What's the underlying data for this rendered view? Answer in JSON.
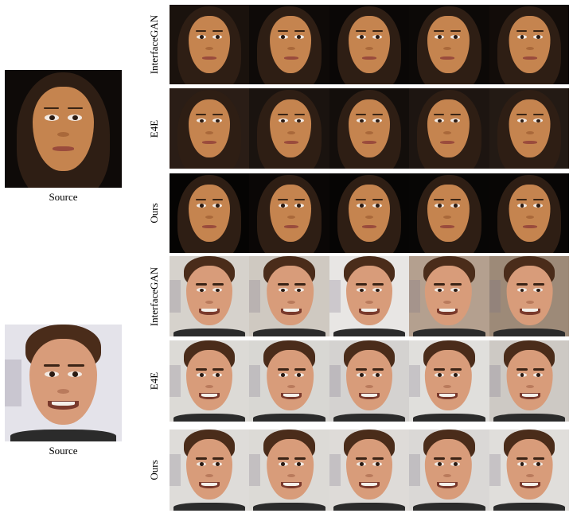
{
  "sources": [
    {
      "caption": "Source",
      "bg": "#0e0a08",
      "look": "f"
    },
    {
      "caption": "Source",
      "bg": "#e4e3ea",
      "look": "m"
    }
  ],
  "rows": [
    {
      "label": "InterfaceGAN",
      "look": "f",
      "bgs": [
        "#1a120d",
        "#0e0a08",
        "#0a0706",
        "#0c0907",
        "#120c09"
      ]
    },
    {
      "label": "E4E",
      "look": "f",
      "bgs": [
        "#2a1d16",
        "#1a130f",
        "#130e0b",
        "#1d1511",
        "#231a14"
      ]
    },
    {
      "label": "Ours",
      "look": "f",
      "bgs": [
        "#050403",
        "#0a0706",
        "#060504",
        "#070605",
        "#080605"
      ]
    },
    {
      "label": "InterfaceGAN",
      "look": "m",
      "bgs": [
        "#d6d2cc",
        "#cfc9c1",
        "#e8e6e4",
        "#b4a08f",
        "#9d8a78"
      ]
    },
    {
      "label": "E4E",
      "look": "m",
      "bgs": [
        "#dcdad6",
        "#d8d7d3",
        "#d4d2d0",
        "#e0dfdc",
        "#cdc9c4"
      ]
    },
    {
      "label": "Ours",
      "look": "m",
      "bgs": [
        "#dedcd9",
        "#dcdad6",
        "#dedbd8",
        "#dad8d6",
        "#e0dedb"
      ]
    }
  ]
}
